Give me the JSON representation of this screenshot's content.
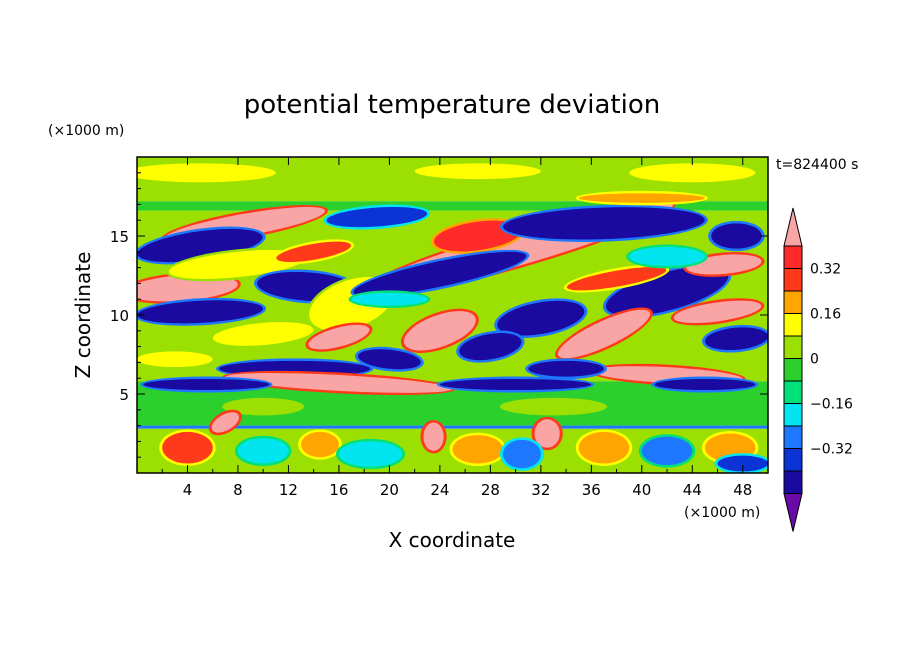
{
  "chart_data": {
    "type": "heatmap",
    "title": "potential temperature deviation",
    "xlabel": "X coordinate",
    "ylabel": "Z coordinate",
    "x_unit": "(×1000 m)",
    "y_unit": "(×1000 m)",
    "time_label": "t=824400 s",
    "xlim": [
      0,
      50
    ],
    "ylim": [
      0,
      20
    ],
    "x_ticks": [
      4,
      8,
      12,
      16,
      20,
      24,
      28,
      32,
      36,
      40,
      44,
      48
    ],
    "y_ticks": [
      5,
      10,
      15
    ],
    "colorbar": {
      "levels": [
        -0.48,
        -0.4,
        -0.32,
        -0.24,
        -0.16,
        -0.08,
        0,
        0.08,
        0.16,
        0.24,
        0.32,
        0.4
      ],
      "colors": [
        "#6a0aa8",
        "#1a0aa0",
        "#0b33d6",
        "#1e78ff",
        "#00e5f0",
        "#00e07a",
        "#2cd02c",
        "#9be000",
        "#ffff00",
        "#ffa500",
        "#ff3a1a",
        "#ff2a2a",
        "#f9a5a5"
      ],
      "tick_labels": [
        {
          "value": 0.32,
          "label": "0.32"
        },
        {
          "value": 0.16,
          "label": "0.16"
        },
        {
          "value": 0,
          "label": "0"
        },
        {
          "value": -0.16,
          "label": "−0.16"
        },
        {
          "value": -0.32,
          "label": "−0.32"
        }
      ]
    },
    "bands": [
      {
        "x0": 0,
        "x1": 50,
        "y0": 17.2,
        "y1": 20,
        "value": 0.02
      },
      {
        "x0": 0,
        "x1": 50,
        "y0": 16.6,
        "y1": 17.2,
        "value": -0.04
      },
      {
        "x0": 0,
        "x1": 50,
        "y0": 5.8,
        "y1": 16.6,
        "value": 0.05
      },
      {
        "x0": 0,
        "x1": 50,
        "y0": 5.0,
        "y1": 5.8,
        "value": -0.06
      },
      {
        "x0": 0,
        "x1": 50,
        "y0": 3.0,
        "y1": 5.0,
        "value": -0.02
      },
      {
        "x0": 0,
        "x1": 50,
        "y0": 2.8,
        "y1": 3.0,
        "value": -0.3
      },
      {
        "x0": 0,
        "x1": 50,
        "y0": 0,
        "y1": 2.8,
        "value": 0.02
      }
    ],
    "features": [
      {
        "cx": 8.5,
        "cy": 15.7,
        "rx": 6.5,
        "ry": 0.7,
        "angle": 10,
        "value": 0.45
      },
      {
        "cx": 5,
        "cy": 14.4,
        "rx": 5,
        "ry": 0.9,
        "angle": 8,
        "value": -0.45
      },
      {
        "cx": 3.5,
        "cy": 11.7,
        "rx": 4.5,
        "ry": 0.8,
        "angle": 4,
        "value": 0.45
      },
      {
        "cx": 8,
        "cy": 13.2,
        "rx": 5.5,
        "ry": 0.8,
        "angle": 6,
        "value": 0.1
      },
      {
        "cx": 5,
        "cy": 10.2,
        "rx": 5,
        "ry": 0.7,
        "angle": 3,
        "value": -0.45
      },
      {
        "cx": 13.5,
        "cy": 11.8,
        "rx": 4,
        "ry": 0.9,
        "angle": -4,
        "value": -0.45
      },
      {
        "cx": 17,
        "cy": 10.7,
        "rx": 3.5,
        "ry": 1.5,
        "angle": 20,
        "value": 0.1
      },
      {
        "cx": 30,
        "cy": 14.2,
        "rx": 13,
        "ry": 1.1,
        "angle": 16,
        "value": 0.45
      },
      {
        "cx": 27,
        "cy": 15.0,
        "rx": 3.5,
        "ry": 0.9,
        "angle": 8,
        "value": 0.34
      },
      {
        "cx": 24,
        "cy": 12.6,
        "rx": 7,
        "ry": 0.8,
        "angle": 12,
        "value": -0.45
      },
      {
        "cx": 37,
        "cy": 15.8,
        "rx": 8,
        "ry": 1.0,
        "angle": 2,
        "value": -0.45
      },
      {
        "cx": 19,
        "cy": 16.2,
        "rx": 4,
        "ry": 0.6,
        "angle": 4,
        "value": -0.34
      },
      {
        "cx": 42,
        "cy": 11.5,
        "rx": 5,
        "ry": 1.2,
        "angle": 15,
        "value": -0.45
      },
      {
        "cx": 46.5,
        "cy": 13.2,
        "rx": 3,
        "ry": 0.6,
        "angle": 5,
        "value": 0.45
      },
      {
        "cx": 47.5,
        "cy": 15.0,
        "rx": 2,
        "ry": 0.8,
        "angle": 0,
        "value": -0.45
      },
      {
        "cx": 46,
        "cy": 10.2,
        "rx": 3.5,
        "ry": 0.6,
        "angle": 8,
        "value": 0.45
      },
      {
        "cx": 47.5,
        "cy": 8.5,
        "rx": 2.5,
        "ry": 0.7,
        "angle": 5,
        "value": -0.45
      },
      {
        "cx": 37,
        "cy": 8.8,
        "rx": 4,
        "ry": 0.8,
        "angle": 25,
        "value": 0.45
      },
      {
        "cx": 32,
        "cy": 9.8,
        "rx": 3.5,
        "ry": 1.0,
        "angle": 10,
        "value": -0.45
      },
      {
        "cx": 24,
        "cy": 9.0,
        "rx": 3,
        "ry": 1.0,
        "angle": 20,
        "value": 0.45
      },
      {
        "cx": 28,
        "cy": 8.0,
        "rx": 2.5,
        "ry": 0.8,
        "angle": 10,
        "value": -0.45
      },
      {
        "cx": 10,
        "cy": 8.8,
        "rx": 4,
        "ry": 0.7,
        "angle": 5,
        "value": 0.1
      },
      {
        "cx": 16,
        "cy": 8.6,
        "rx": 2.5,
        "ry": 0.6,
        "angle": 15,
        "value": 0.45
      },
      {
        "cx": 20,
        "cy": 7.2,
        "rx": 2.5,
        "ry": 0.6,
        "angle": -6,
        "value": -0.45
      },
      {
        "cx": 12.5,
        "cy": 6.6,
        "rx": 6,
        "ry": 0.5,
        "angle": 0,
        "value": -0.45
      },
      {
        "cx": 3,
        "cy": 7.2,
        "rx": 3,
        "ry": 0.5,
        "angle": 0,
        "value": 0.1
      },
      {
        "cx": 16,
        "cy": 5.7,
        "rx": 9,
        "ry": 0.5,
        "angle": -3,
        "value": 0.45
      },
      {
        "cx": 42,
        "cy": 6.2,
        "rx": 6,
        "ry": 0.5,
        "angle": -3,
        "value": 0.45
      },
      {
        "cx": 34,
        "cy": 6.6,
        "rx": 3,
        "ry": 0.5,
        "angle": 0,
        "value": -0.45
      },
      {
        "cx": 5.5,
        "cy": 5.6,
        "rx": 5,
        "ry": 0.35,
        "angle": 0,
        "value": -0.45
      },
      {
        "cx": 30,
        "cy": 5.6,
        "rx": 6,
        "ry": 0.35,
        "angle": 0,
        "value": -0.45
      },
      {
        "cx": 45,
        "cy": 5.6,
        "rx": 4,
        "ry": 0.35,
        "angle": 0,
        "value": -0.45
      },
      {
        "cx": 38,
        "cy": 12.3,
        "rx": 4,
        "ry": 0.5,
        "angle": 10,
        "value": 0.24
      },
      {
        "cx": 42,
        "cy": 13.7,
        "rx": 3,
        "ry": 0.6,
        "angle": 0,
        "value": -0.2
      },
      {
        "cx": 14,
        "cy": 14.0,
        "rx": 3,
        "ry": 0.5,
        "angle": 10,
        "value": 0.28
      },
      {
        "cx": 20,
        "cy": 11.0,
        "rx": 3,
        "ry": 0.4,
        "angle": 0,
        "value": -0.2
      },
      {
        "cx": 5,
        "cy": 19.0,
        "rx": 6,
        "ry": 0.6,
        "angle": 0,
        "value": 0.1
      },
      {
        "cx": 27,
        "cy": 19.1,
        "rx": 5,
        "ry": 0.5,
        "angle": 0,
        "value": 0.1
      },
      {
        "cx": 44,
        "cy": 19.0,
        "rx": 5,
        "ry": 0.6,
        "angle": 0,
        "value": 0.1
      },
      {
        "cx": 40,
        "cy": 17.4,
        "rx": 5,
        "ry": 0.3,
        "angle": 0,
        "value": 0.22
      },
      {
        "cx": 10,
        "cy": 4.2,
        "rx": 3,
        "ry": 0.4,
        "angle": 0,
        "value": 0.05
      },
      {
        "cx": 33,
        "cy": 4.2,
        "rx": 4,
        "ry": 0.4,
        "angle": 0,
        "value": 0.05
      },
      {
        "cx": 7,
        "cy": 3.2,
        "rx": 1.2,
        "ry": 0.5,
        "angle": 30,
        "value": 0.45
      },
      {
        "cx": 23.5,
        "cy": 2.3,
        "rx": 0.8,
        "ry": 0.9,
        "angle": 0,
        "value": 0.45
      },
      {
        "cx": 32.5,
        "cy": 2.5,
        "rx": 1.0,
        "ry": 0.9,
        "angle": 0,
        "value": 0.45
      },
      {
        "cx": 4,
        "cy": 1.6,
        "rx": 2,
        "ry": 1.0,
        "angle": 0,
        "value": 0.26
      },
      {
        "cx": 10,
        "cy": 1.4,
        "rx": 2,
        "ry": 0.8,
        "angle": 0,
        "value": -0.24
      },
      {
        "cx": 14.5,
        "cy": 1.8,
        "rx": 1.5,
        "ry": 0.8,
        "angle": 0,
        "value": 0.2
      },
      {
        "cx": 18.5,
        "cy": 1.2,
        "rx": 2.5,
        "ry": 0.8,
        "angle": 0,
        "value": -0.2
      },
      {
        "cx": 27,
        "cy": 1.5,
        "rx": 2,
        "ry": 0.9,
        "angle": 0,
        "value": 0.18
      },
      {
        "cx": 30.5,
        "cy": 1.2,
        "rx": 1.5,
        "ry": 0.9,
        "angle": 0,
        "value": -0.3
      },
      {
        "cx": 37,
        "cy": 1.6,
        "rx": 2,
        "ry": 1.0,
        "angle": 0,
        "value": 0.2
      },
      {
        "cx": 42,
        "cy": 1.4,
        "rx": 2,
        "ry": 0.9,
        "angle": 0,
        "value": -0.26
      },
      {
        "cx": 47,
        "cy": 1.6,
        "rx": 2,
        "ry": 0.9,
        "angle": 0,
        "value": 0.22
      },
      {
        "cx": 48,
        "cy": 0.6,
        "rx": 2,
        "ry": 0.5,
        "angle": 0,
        "value": -0.34
      }
    ]
  }
}
